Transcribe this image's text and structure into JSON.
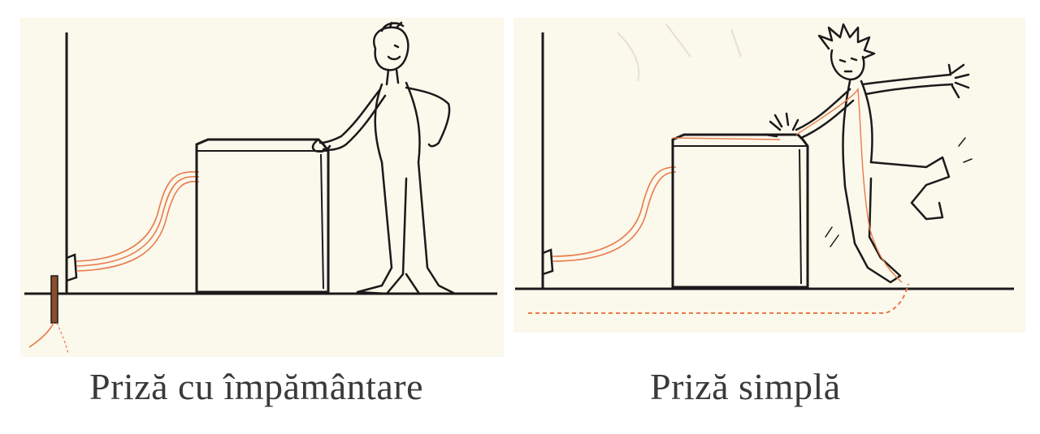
{
  "panels": [
    {
      "caption": "Priză cu împământare",
      "scenario": "grounded-outlet"
    },
    {
      "caption": "Priză simplă",
      "scenario": "simple-outlet"
    }
  ],
  "colors": {
    "background": "#fbf8ec",
    "ink": "#1a1a1a",
    "current": "#e87a4a",
    "caption": "#3a3a3a"
  }
}
